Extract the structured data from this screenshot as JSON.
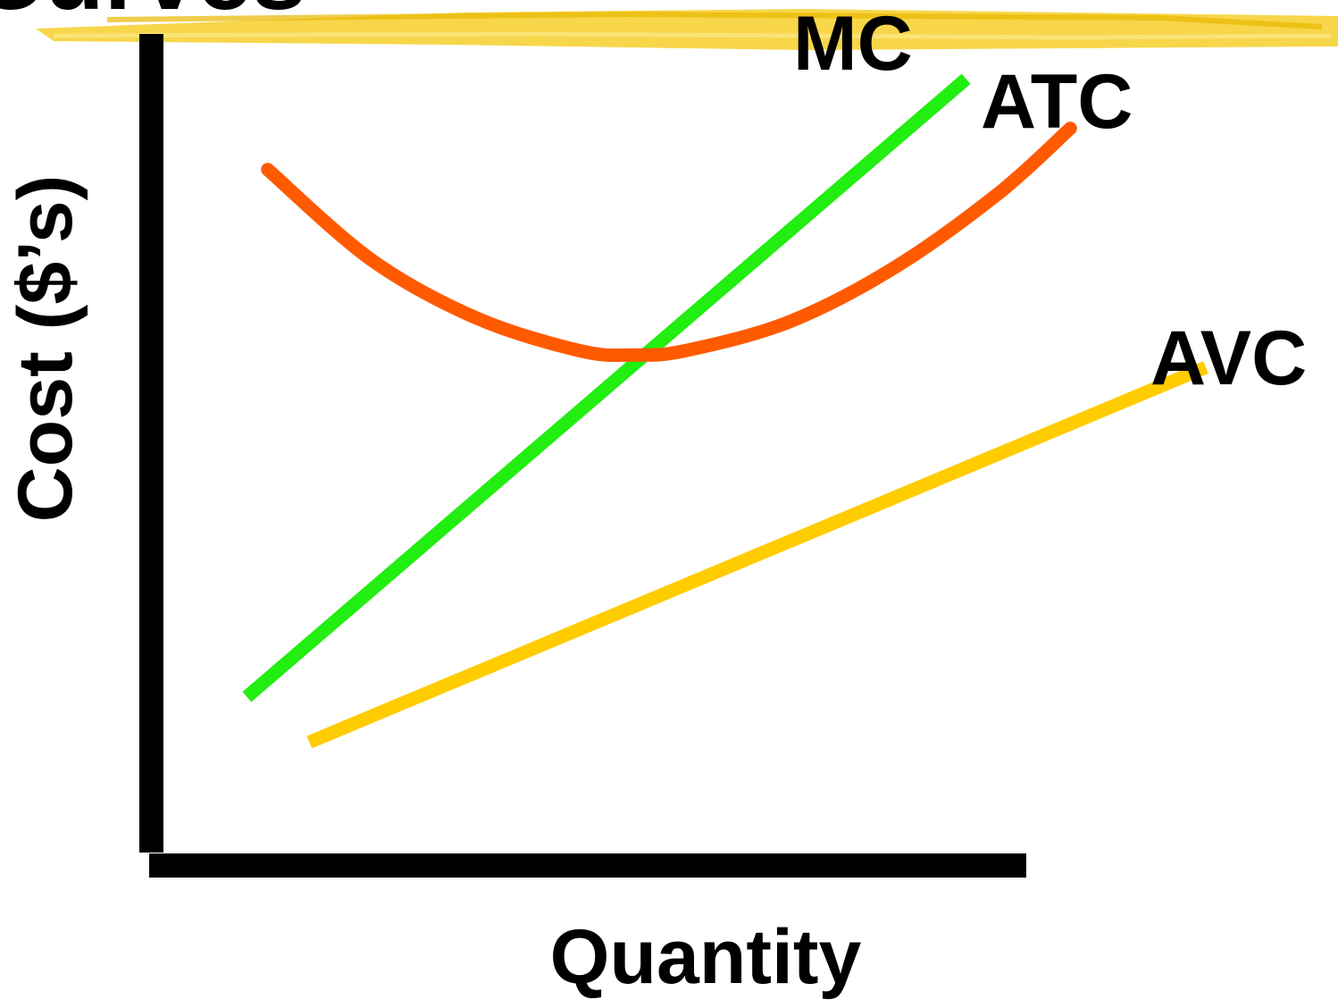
{
  "title": "Curves",
  "chart_data": {
    "type": "line",
    "xlabel": "Quantity",
    "ylabel": "Cost ($’s)",
    "xlim": [
      0,
      100
    ],
    "ylim": [
      0,
      100
    ],
    "grid": false,
    "legend": "none",
    "series": [
      {
        "name": "MC",
        "color": "#22ee11",
        "x": [
          8,
          77
        ],
        "y": [
          19,
          94
        ]
      },
      {
        "name": "ATC",
        "color": "#ff5a00",
        "x": [
          10,
          20,
          30,
          40,
          45,
          50,
          60,
          70,
          80,
          87
        ],
        "y": [
          83,
          72,
          65,
          61,
          60.5,
          61,
          64.5,
          71,
          80,
          88
        ]
      },
      {
        "name": "AVC",
        "color": "#ffcc00",
        "x": [
          14,
          100
        ],
        "y": [
          13.5,
          59
        ]
      }
    ]
  }
}
